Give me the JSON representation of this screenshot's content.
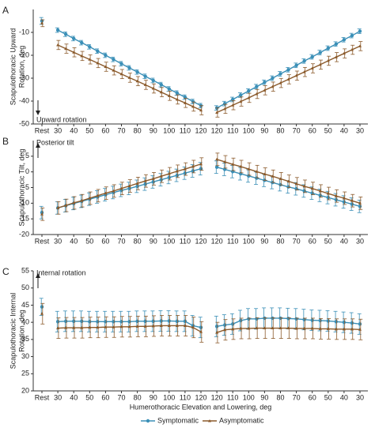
{
  "chart_data": [
    {
      "type": "line",
      "label": "A",
      "ylabel": [
        "Scapulothoracic Upward",
        "Rotation, deg"
      ],
      "annotation": "Upward rotation",
      "categories": [
        "Rest",
        "30",
        null,
        "40",
        null,
        "50",
        null,
        "60",
        null,
        "70",
        null,
        "80",
        null,
        "90",
        null,
        "100",
        null,
        "110",
        null,
        "120",
        "120",
        null,
        "110",
        null,
        "100",
        null,
        "90",
        null,
        "80",
        null,
        "70",
        null,
        "60",
        null,
        "50",
        null,
        "40",
        null,
        "30"
      ],
      "ylim": [
        -50,
        0
      ],
      "yticks": [
        -50,
        -40,
        -30,
        -20,
        -10
      ],
      "series": [
        {
          "name": "Symptomatic",
          "color": "#3a8fb7",
          "values": [
            -5,
            -9,
            -10.8,
            -12.7,
            -14.5,
            -16.3,
            -18.2,
            -20,
            -21.8,
            -23.7,
            -25.5,
            -27.3,
            -29.2,
            -31,
            -32.8,
            -34.7,
            -36.5,
            -38.3,
            -40.2,
            -42,
            -43,
            -41.1,
            -39.3,
            -37.4,
            -35.6,
            -33.7,
            -31.8,
            -30,
            -28.1,
            -26.3,
            -24.4,
            -22.5,
            -20.7,
            -18.8,
            -16.9,
            -15.1,
            -13.2,
            -11.4,
            -9.5
          ],
          "errors": [
            1.5,
            1,
            1,
            1,
            1,
            1,
            1,
            1,
            1,
            1,
            1,
            1,
            1,
            1,
            1,
            1,
            1,
            1,
            1,
            1,
            1,
            1,
            1,
            1,
            1,
            1,
            1,
            1,
            1,
            1,
            1,
            1,
            1,
            1,
            1,
            1,
            1,
            1,
            1
          ]
        },
        {
          "name": "Asymptomatic",
          "color": "#8b5a2b",
          "values": [
            -6,
            -15.5,
            -17.1,
            -18.7,
            -20.3,
            -21.8,
            -23.4,
            -25,
            -26.6,
            -28.2,
            -29.8,
            -31.3,
            -32.9,
            -34.5,
            -36.1,
            -37.7,
            -39.3,
            -40.8,
            -42.4,
            -44,
            -45,
            -43.4,
            -41.8,
            -40.2,
            -38.6,
            -36.9,
            -35.3,
            -33.7,
            -32.1,
            -30.5,
            -28.9,
            -27.3,
            -25.7,
            -24.1,
            -22.4,
            -20.8,
            -19.2,
            -17.6,
            -16
          ],
          "errors": [
            1.5,
            2,
            2,
            2,
            2,
            2,
            2,
            2,
            2,
            2,
            2,
            2,
            2,
            2,
            2,
            2,
            2,
            2,
            2,
            2,
            2,
            2,
            2,
            2,
            2,
            2,
            2,
            2,
            2,
            2,
            2,
            2,
            2,
            2,
            2,
            2,
            2,
            2,
            2
          ]
        }
      ]
    },
    {
      "type": "line",
      "label": "B",
      "ylabel": [
        "Scapulothoracic Tilt, deg"
      ],
      "annotation": "Posterior tilt",
      "categories": [
        "Rest",
        "30",
        null,
        "40",
        null,
        "50",
        null,
        "60",
        null,
        "70",
        null,
        "80",
        null,
        "90",
        null,
        "100",
        null,
        "110",
        null,
        "120",
        "120",
        null,
        "110",
        null,
        "100",
        null,
        "90",
        null,
        "80",
        null,
        "70",
        null,
        "60",
        null,
        "50",
        null,
        "40",
        null,
        "30"
      ],
      "ylim": [
        -20,
        10
      ],
      "yticks": [
        -20,
        -15,
        -10,
        -5,
        0,
        5
      ],
      "series": [
        {
          "color": "#3a8fb7",
          "values": [
            -13,
            -11.5,
            -10.8,
            -10.1,
            -9.4,
            -8.7,
            -8,
            -7.3,
            -6.6,
            -5.9,
            -5.3,
            -4.6,
            -3.9,
            -3.2,
            -2.5,
            -1.8,
            -1.1,
            -0.4,
            0.3,
            1,
            1.5,
            0.8,
            0.1,
            -0.6,
            -1.3,
            -2,
            -2.7,
            -3.4,
            -4.1,
            -4.8,
            -5.4,
            -6.1,
            -6.8,
            -7.5,
            -8.2,
            -8.9,
            -9.6,
            -10.3,
            -11
          ],
          "errors": [
            2,
            2,
            2,
            2,
            2,
            2,
            2,
            2,
            2,
            2,
            2,
            2,
            2,
            2,
            2,
            2,
            2,
            2,
            2,
            2,
            2,
            2,
            2,
            2,
            2,
            2,
            2,
            2,
            2,
            2,
            2,
            2,
            2,
            2,
            2,
            2,
            2,
            2,
            2
          ]
        },
        {
          "color": "#8b5a2b",
          "values": [
            -13.5,
            -11.5,
            -10.7,
            -9.9,
            -9.2,
            -8.4,
            -7.6,
            -6.8,
            -6.1,
            -5.3,
            -4.5,
            -3.7,
            -2.9,
            -2.2,
            -1.4,
            -0.6,
            0.2,
            0.9,
            1.7,
            2.5,
            4,
            3.2,
            2.4,
            1.7,
            0.9,
            0.1,
            -0.7,
            -1.4,
            -2.2,
            -3,
            -3.8,
            -4.6,
            -5.3,
            -6.1,
            -6.9,
            -7.7,
            -8.4,
            -9.2,
            -10
          ],
          "errors": [
            2,
            2,
            2,
            2,
            2,
            2,
            2,
            2,
            2,
            2,
            2,
            2,
            2,
            2,
            2,
            2,
            2,
            2,
            2,
            2,
            2,
            2,
            2,
            2,
            2,
            2,
            2,
            2,
            2,
            2,
            2,
            2,
            2,
            2,
            2,
            2,
            2,
            2,
            2
          ]
        }
      ]
    },
    {
      "type": "line",
      "label": "C",
      "ylabel": [
        "Scapulothoracic Internal",
        "Rotation, deg"
      ],
      "annotation": "Internal rotation",
      "xlabel": "Humerothoracic Elevation and Lowering, deg",
      "categories": [
        "Rest",
        "30",
        null,
        "40",
        null,
        "50",
        null,
        "60",
        null,
        "70",
        null,
        "80",
        null,
        "90",
        null,
        "100",
        null,
        "110",
        null,
        "120",
        "120",
        null,
        "110",
        null,
        "100",
        null,
        "90",
        null,
        "80",
        null,
        "70",
        null,
        "60",
        null,
        "50",
        null,
        "40",
        null,
        "30"
      ],
      "ylim": [
        20,
        55
      ],
      "yticks": [
        20,
        25,
        30,
        35,
        40,
        45,
        50,
        55
      ],
      "series": [
        {
          "color": "#3a8fb7",
          "values": [
            44.5,
            40.2,
            40.3,
            40.3,
            40.3,
            40.2,
            40.2,
            40.2,
            40.2,
            40.2,
            40.2,
            40.3,
            40.3,
            40.3,
            40.4,
            40.4,
            40.3,
            40.3,
            39,
            38.5,
            38.8,
            39.2,
            39.5,
            40.5,
            41,
            41,
            41.2,
            41.2,
            41.2,
            41.1,
            41,
            40.8,
            40.6,
            40.5,
            40.4,
            40.2,
            40,
            39.8,
            39.5
          ],
          "errors": [
            2.5,
            3,
            3,
            3,
            3,
            3,
            3,
            3,
            3,
            3,
            3,
            3,
            3,
            3,
            3,
            3,
            3,
            3,
            3,
            3,
            3,
            3,
            3,
            3,
            3,
            3,
            3,
            3,
            3,
            3,
            3,
            3,
            3,
            3,
            3,
            3,
            3,
            3,
            3
          ]
        },
        {
          "color": "#8b5a2b",
          "values": [
            42.5,
            38.3,
            38.4,
            38.4,
            38.4,
            38.5,
            38.5,
            38.6,
            38.6,
            38.7,
            38.7,
            38.8,
            38.8,
            38.9,
            39,
            39,
            39,
            39,
            38.5,
            37.2,
            37,
            37.8,
            38,
            38.2,
            38.2,
            38.3,
            38.3,
            38.3,
            38.3,
            38.3,
            38.2,
            38.2,
            38.2,
            38.1,
            38.1,
            38,
            38,
            38,
            37.9
          ],
          "errors": [
            3,
            3,
            3,
            3,
            3,
            3,
            3,
            3,
            3,
            3,
            3,
            3,
            3,
            3,
            3,
            3,
            3,
            3,
            3,
            3,
            3,
            3,
            3,
            3,
            3,
            3,
            3,
            3,
            3,
            3,
            3,
            3,
            3,
            3,
            3,
            3,
            3,
            3,
            3
          ]
        }
      ]
    }
  ]
}
